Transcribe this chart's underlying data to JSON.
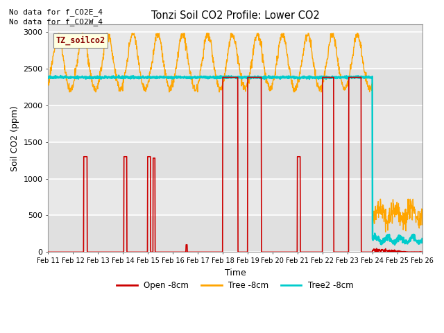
{
  "title": "Tonzi Soil CO2 Profile: Lower CO2",
  "xlabel": "Time",
  "ylabel": "Soil CO2 (ppm)",
  "ylim": [
    0,
    3100
  ],
  "note1": "No data for f_CO2E_4",
  "note2": "No data for f_CO2W_4",
  "legend_label": "TZ_soilco2",
  "series_labels": [
    "Open -8cm",
    "Tree -8cm",
    "Tree2 -8cm"
  ],
  "series_colors": [
    "#cc0000",
    "#ffa500",
    "#00cccc"
  ],
  "background_color": "#e8e8e8",
  "plot_bg": "#e8e8e8",
  "grid_color": "#ffffff",
  "xticks": [
    "Feb 11",
    "Feb 12",
    "Feb 13",
    "Feb 14",
    "Feb 15",
    "Feb 16",
    "Feb 17",
    "Feb 18",
    "Feb 19",
    "Feb 20",
    "Feb 21",
    "Feb 22",
    "Feb 23",
    "Feb 24",
    "Feb 25",
    "Feb 26"
  ],
  "yticks": [
    0,
    500,
    1000,
    1500,
    2000,
    2500,
    3000
  ]
}
